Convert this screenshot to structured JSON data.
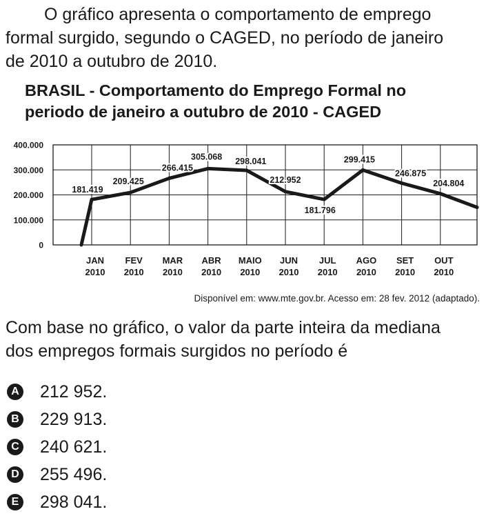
{
  "intro": {
    "line1": "O gráfico apresenta o comportamento de emprego",
    "line2": "formal surgido, segundo o CAGED, no período de janeiro",
    "line3": "de 2010 a outubro de 2010."
  },
  "chart_data": {
    "type": "line",
    "title_lines": [
      "BRASIL - Comportamento do Emprego Formal no",
      "periodo de janeiro a outubro de 2010 - CAGED"
    ],
    "categories": [
      [
        "JAN",
        "2010"
      ],
      [
        "FEV",
        "2010"
      ],
      [
        "MAR",
        "2010"
      ],
      [
        "ABR",
        "2010"
      ],
      [
        "MAIO",
        "2010"
      ],
      [
        "JUN",
        "2010"
      ],
      [
        "JUL",
        "2010"
      ],
      [
        "AGO",
        "2010"
      ],
      [
        "SET",
        "2010"
      ],
      [
        "OUT",
        "2010"
      ]
    ],
    "values": [
      181419,
      209425,
      266415,
      305068,
      298041,
      212952,
      181796,
      299415,
      246875,
      204804
    ],
    "value_labels": [
      "181.419",
      "209.425",
      "266.415",
      "305.068",
      "298.041",
      "212.952",
      "181.796",
      "299.415",
      "246.875",
      "204.804"
    ],
    "y_ticks": [
      "400.000",
      "300.000",
      "200.000",
      "100.000",
      "0"
    ],
    "ylim": [
      0,
      400000
    ],
    "grid": true,
    "legend": "none"
  },
  "source": "Disponível em: www.mte.gov.br. Acesso em: 28 fev. 2012 (adaptado).",
  "question": {
    "line1": "Com base no gráfico, o valor da parte inteira da mediana",
    "line2": "dos empregos formais surgidos no período é"
  },
  "options": [
    {
      "letter": "A",
      "text": "212 952."
    },
    {
      "letter": "B",
      "text": "229 913."
    },
    {
      "letter": "C",
      "text": "240 621."
    },
    {
      "letter": "D",
      "text": "255 496."
    },
    {
      "letter": "E",
      "text": "298 041."
    }
  ]
}
